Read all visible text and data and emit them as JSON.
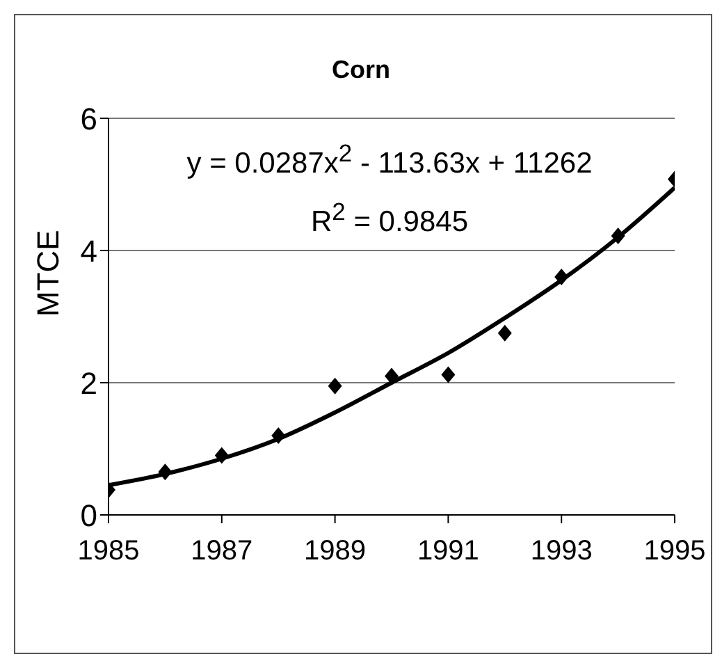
{
  "chart_data": {
    "type": "scatter",
    "title": "Corn",
    "ylabel": "MTCE",
    "x": [
      1985,
      1986,
      1987,
      1988,
      1989,
      1990,
      1991,
      1992,
      1993,
      1994,
      1995
    ],
    "series": [
      {
        "color": "#000000",
        "marker": "diamond",
        "values": [
          0.38,
          0.65,
          0.9,
          1.2,
          1.95,
          2.1,
          2.12,
          2.75,
          3.6,
          4.22,
          5.08
        ]
      },
      {
        "type": "line",
        "color": "#000000",
        "marker": "none",
        "line_style": "solid",
        "x": [
          1985,
          1986,
          1987,
          1988,
          1989,
          1990,
          1991,
          1992,
          1993,
          1994,
          1995
        ],
        "values": [
          0.45,
          0.62,
          0.85,
          1.15,
          1.55,
          2.0,
          2.45,
          2.98,
          3.55,
          4.2,
          4.95
        ]
      }
    ],
    "xlim": [
      1985,
      1995
    ],
    "xticks": [
      1985,
      1987,
      1989,
      1991,
      1993,
      1995
    ],
    "ylim": [
      0,
      6
    ],
    "yticks": [
      0,
      2,
      4,
      6
    ],
    "grid": "y",
    "legend": false,
    "annotations": [
      "y = 0.0287x$^{2}$ - 113.63x + 11262",
      "R$^{2}$ = 0.9845"
    ]
  }
}
